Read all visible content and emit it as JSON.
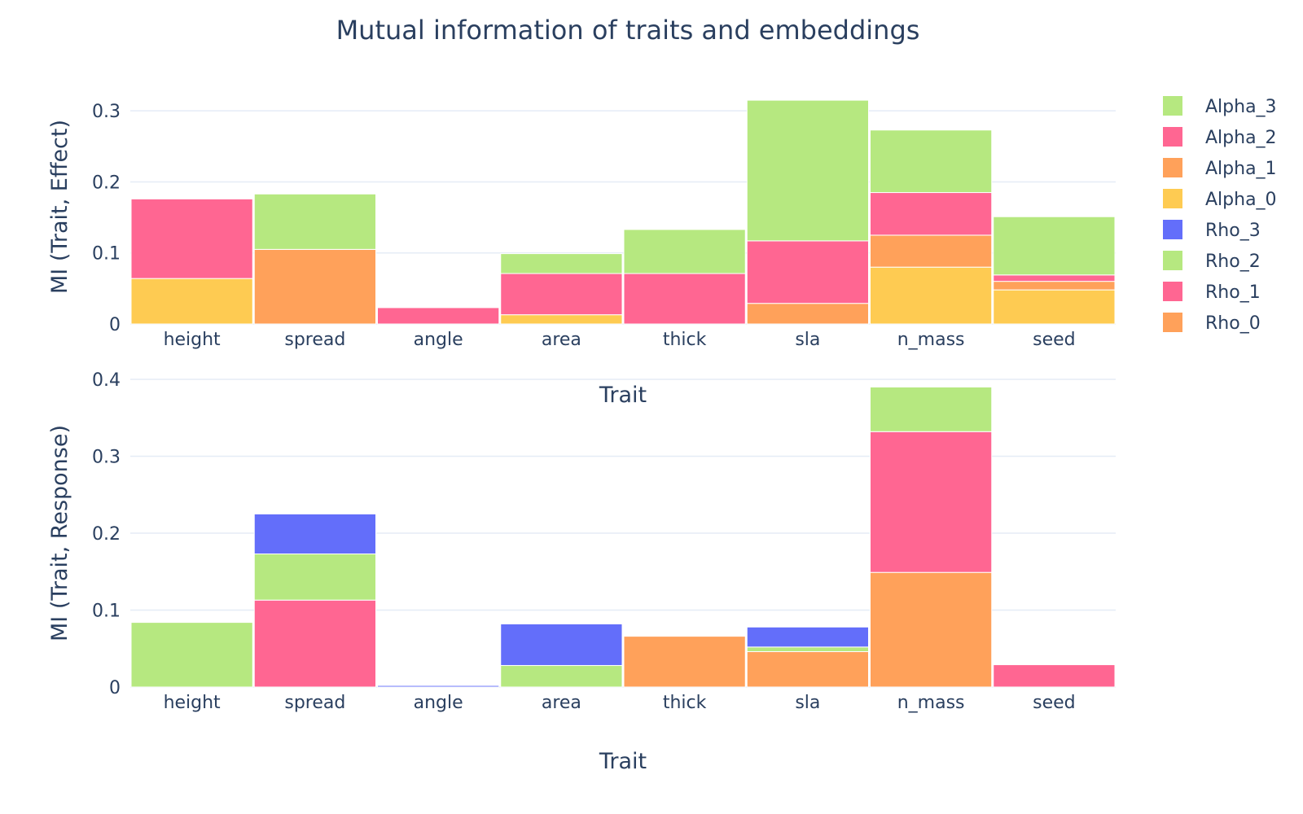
{
  "chart_data": {
    "type": "bar",
    "barmode": "stack",
    "title": "Mutual information of traits and embeddings",
    "colors": {
      "Alpha_3": "#b6e880",
      "Alpha_2": "#ff6692",
      "Alpha_1": "#ffa15a",
      "Alpha_0": "#fecb52",
      "Rho_3": "#636efa",
      "Rho_2": "#b6e880",
      "Rho_1": "#ff6692",
      "Rho_0": "#ffa15a"
    },
    "legend": {
      "position": "right",
      "items": [
        "Alpha_3",
        "Alpha_2",
        "Alpha_1",
        "Alpha_0",
        "Rho_3",
        "Rho_2",
        "Rho_1",
        "Rho_0"
      ]
    },
    "panels": [
      {
        "xlabel": "Trait",
        "ylabel": "MI (Trait, Effect)",
        "categories": [
          "height",
          "spread",
          "angle",
          "area",
          "thick",
          "sla",
          "n_mass",
          "seed"
        ],
        "ylim": [
          0,
          0.33
        ],
        "yticks": [
          0,
          0.1,
          0.2,
          0.3
        ],
        "ytick_labels": [
          "0",
          "0.1",
          "0.2",
          "0.3"
        ],
        "grid": true,
        "series": [
          {
            "name": "Alpha_0",
            "values": [
              0.064,
              0,
              0,
              0.013,
              0,
              0,
              0.08,
              0.048
            ]
          },
          {
            "name": "Alpha_1",
            "values": [
              0,
              0.105,
              0,
              0,
              0,
              0.029,
              0.045,
              0.012
            ]
          },
          {
            "name": "Alpha_2",
            "values": [
              0.112,
              0,
              0.023,
              0.058,
              0.071,
              0.088,
              0.06,
              0.009
            ]
          },
          {
            "name": "Alpha_3",
            "values": [
              0,
              0.078,
              0,
              0.028,
              0.062,
              0.198,
              0.088,
              0.082
            ]
          }
        ]
      },
      {
        "xlabel": "Trait",
        "ylabel": "MI (Trait, Response)",
        "categories": [
          "height",
          "spread",
          "angle",
          "area",
          "thick",
          "sla",
          "n_mass",
          "seed"
        ],
        "ylim": [
          0,
          0.4
        ],
        "yticks": [
          0,
          0.1,
          0.2,
          0.3,
          0.4
        ],
        "ytick_labels": [
          "0",
          "0.1",
          "0.2",
          "0.3",
          "0.4"
        ],
        "grid": true,
        "series": [
          {
            "name": "Rho_0",
            "values": [
              0,
              0,
              0,
              0,
              0.066,
              0.046,
              0.149,
              0
            ]
          },
          {
            "name": "Rho_1",
            "values": [
              0,
              0.113,
              0,
              0,
              0,
              0,
              0.183,
              0.029
            ]
          },
          {
            "name": "Rho_2",
            "values": [
              0.084,
              0.06,
              0,
              0.028,
              0,
              0.006,
              0.058,
              0
            ]
          },
          {
            "name": "Rho_3",
            "values": [
              0,
              0.052,
              0.002,
              0.054,
              0,
              0.026,
              0,
              0
            ]
          }
        ]
      }
    ]
  }
}
